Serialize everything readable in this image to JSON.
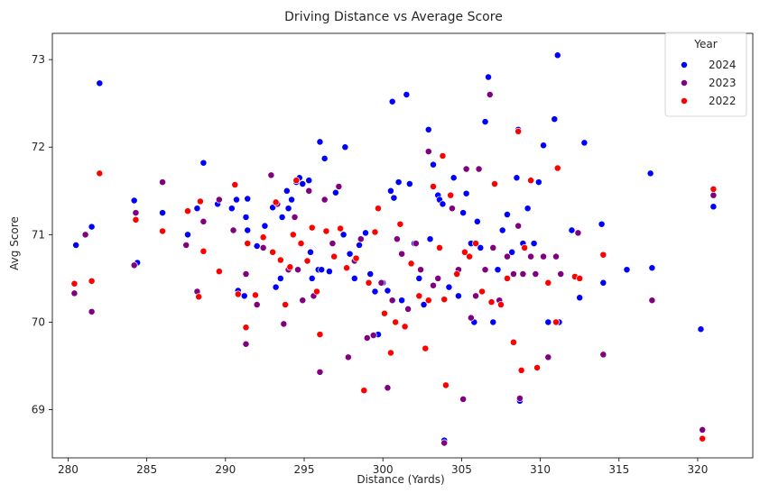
{
  "chart_data": {
    "type": "scatter",
    "title": "Driving Distance vs Average Score",
    "xlabel": "Distance (Yards)",
    "ylabel": "Avg Score",
    "xlim": [
      279,
      323.5
    ],
    "ylim": [
      68.45,
      73.3
    ],
    "xticks": [
      280,
      285,
      290,
      295,
      300,
      305,
      310,
      315,
      320
    ],
    "yticks": [
      69,
      70,
      71,
      72,
      73
    ],
    "grid": false,
    "legend": {
      "title": "Year",
      "placement": "top-right"
    },
    "series": [
      {
        "name": "2024",
        "color": "#0000ff",
        "points": [
          [
            280.5,
            70.88
          ],
          [
            281.1,
            71.0
          ],
          [
            281.5,
            71.09
          ],
          [
            282.0,
            72.73
          ],
          [
            284.2,
            71.39
          ],
          [
            284.4,
            70.68
          ],
          [
            286.0,
            71.25
          ],
          [
            287.6,
            71.0
          ],
          [
            288.2,
            71.3
          ],
          [
            288.6,
            71.82
          ],
          [
            289.5,
            71.35
          ],
          [
            290.4,
            71.3
          ],
          [
            290.7,
            71.4
          ],
          [
            290.8,
            70.36
          ],
          [
            291.2,
            70.3
          ],
          [
            291.3,
            71.2
          ],
          [
            291.4,
            71.05
          ],
          [
            291.4,
            71.41
          ],
          [
            292.0,
            70.87
          ],
          [
            292.5,
            71.1
          ],
          [
            293.0,
            71.31
          ],
          [
            293.2,
            70.4
          ],
          [
            293.5,
            70.5
          ],
          [
            293.6,
            71.2
          ],
          [
            293.9,
            71.5
          ],
          [
            294.0,
            71.3
          ],
          [
            294.2,
            71.4
          ],
          [
            294.5,
            71.6
          ],
          [
            294.7,
            71.65
          ],
          [
            294.9,
            71.58
          ],
          [
            295.3,
            71.62
          ],
          [
            295.4,
            70.8
          ],
          [
            295.5,
            70.5
          ],
          [
            295.9,
            70.6
          ],
          [
            296.0,
            72.06
          ],
          [
            296.1,
            70.6
          ],
          [
            296.3,
            71.87
          ],
          [
            296.6,
            70.58
          ],
          [
            297.0,
            71.48
          ],
          [
            297.5,
            71.0
          ],
          [
            297.6,
            72.0
          ],
          [
            297.9,
            70.78
          ],
          [
            298.2,
            70.5
          ],
          [
            298.5,
            70.88
          ],
          [
            298.9,
            71.02
          ],
          [
            299.2,
            70.55
          ],
          [
            299.5,
            70.35
          ],
          [
            299.7,
            69.86
          ],
          [
            300.0,
            70.45
          ],
          [
            300.3,
            70.36
          ],
          [
            300.5,
            71.5
          ],
          [
            300.6,
            72.52
          ],
          [
            300.7,
            71.42
          ],
          [
            301.0,
            71.6
          ],
          [
            301.2,
            70.25
          ],
          [
            301.5,
            72.6
          ],
          [
            301.7,
            71.58
          ],
          [
            302.0,
            70.9
          ],
          [
            302.3,
            70.5
          ],
          [
            302.6,
            70.2
          ],
          [
            302.9,
            72.2
          ],
          [
            303.0,
            70.95
          ],
          [
            303.2,
            71.8
          ],
          [
            303.5,
            71.45
          ],
          [
            303.6,
            71.4
          ],
          [
            303.8,
            71.35
          ],
          [
            303.9,
            68.65
          ],
          [
            304.2,
            70.4
          ],
          [
            304.5,
            71.65
          ],
          [
            304.8,
            70.3
          ],
          [
            305.1,
            71.25
          ],
          [
            305.3,
            71.47
          ],
          [
            305.6,
            70.9
          ],
          [
            305.8,
            70.0
          ],
          [
            306.0,
            71.15
          ],
          [
            306.2,
            70.85
          ],
          [
            306.5,
            72.29
          ],
          [
            306.7,
            72.8
          ],
          [
            307.0,
            70.0
          ],
          [
            307.3,
            70.6
          ],
          [
            307.6,
            71.05
          ],
          [
            307.9,
            71.23
          ],
          [
            308.2,
            70.8
          ],
          [
            308.5,
            71.65
          ],
          [
            308.6,
            72.2
          ],
          [
            308.7,
            69.1
          ],
          [
            308.9,
            70.9
          ],
          [
            309.2,
            71.3
          ],
          [
            309.6,
            70.9
          ],
          [
            309.9,
            71.6
          ],
          [
            310.2,
            72.02
          ],
          [
            310.5,
            70.0
          ],
          [
            310.9,
            72.32
          ],
          [
            311.1,
            73.05
          ],
          [
            311.2,
            70.0
          ],
          [
            312.0,
            71.05
          ],
          [
            312.5,
            70.28
          ],
          [
            312.8,
            72.05
          ],
          [
            313.9,
            71.12
          ],
          [
            314.0,
            70.45
          ],
          [
            315.5,
            70.6
          ],
          [
            317.0,
            71.7
          ],
          [
            317.1,
            70.62
          ],
          [
            320.2,
            69.92
          ],
          [
            321.0,
            71.32
          ]
        ]
      },
      {
        "name": "2023",
        "color": "#800080",
        "points": [
          [
            280.4,
            70.33
          ],
          [
            281.1,
            71.0
          ],
          [
            281.5,
            70.12
          ],
          [
            284.2,
            70.65
          ],
          [
            284.3,
            71.25
          ],
          [
            286.0,
            71.6
          ],
          [
            287.5,
            70.88
          ],
          [
            288.2,
            70.35
          ],
          [
            288.6,
            71.15
          ],
          [
            289.6,
            71.4
          ],
          [
            290.5,
            71.05
          ],
          [
            291.3,
            69.75
          ],
          [
            291.3,
            70.55
          ],
          [
            292.0,
            70.2
          ],
          [
            292.4,
            70.85
          ],
          [
            292.9,
            71.68
          ],
          [
            293.3,
            71.35
          ],
          [
            293.7,
            69.98
          ],
          [
            294.0,
            70.6
          ],
          [
            294.4,
            71.2
          ],
          [
            294.6,
            70.6
          ],
          [
            294.9,
            70.25
          ],
          [
            295.3,
            71.5
          ],
          [
            295.6,
            70.3
          ],
          [
            296.0,
            69.43
          ],
          [
            296.3,
            71.4
          ],
          [
            296.8,
            70.9
          ],
          [
            297.2,
            71.55
          ],
          [
            297.8,
            69.6
          ],
          [
            298.2,
            70.7
          ],
          [
            298.6,
            70.95
          ],
          [
            299.0,
            69.82
          ],
          [
            299.4,
            69.85
          ],
          [
            299.9,
            70.45
          ],
          [
            300.3,
            69.25
          ],
          [
            300.6,
            70.25
          ],
          [
            300.9,
            70.95
          ],
          [
            301.2,
            70.78
          ],
          [
            301.6,
            70.15
          ],
          [
            302.1,
            70.9
          ],
          [
            302.4,
            70.6
          ],
          [
            302.9,
            71.95
          ],
          [
            303.2,
            70.42
          ],
          [
            303.5,
            70.5
          ],
          [
            303.9,
            68.62
          ],
          [
            304.4,
            71.3
          ],
          [
            304.8,
            70.6
          ],
          [
            305.1,
            69.12
          ],
          [
            305.3,
            71.75
          ],
          [
            305.6,
            70.05
          ],
          [
            305.9,
            70.3
          ],
          [
            306.1,
            71.75
          ],
          [
            306.5,
            70.6
          ],
          [
            306.8,
            72.6
          ],
          [
            307.0,
            70.85
          ],
          [
            307.4,
            70.25
          ],
          [
            307.9,
            70.75
          ],
          [
            308.3,
            70.55
          ],
          [
            308.6,
            71.1
          ],
          [
            308.7,
            69.13
          ],
          [
            308.9,
            70.55
          ],
          [
            309.4,
            70.75
          ],
          [
            309.7,
            70.55
          ],
          [
            310.2,
            70.75
          ],
          [
            310.5,
            69.6
          ],
          [
            311.0,
            70.75
          ],
          [
            311.3,
            70.55
          ],
          [
            312.4,
            71.02
          ],
          [
            314.0,
            69.63
          ],
          [
            317.1,
            70.25
          ],
          [
            320.3,
            68.77
          ],
          [
            321.0,
            71.45
          ]
        ]
      },
      {
        "name": "2022",
        "color": "#ff0000",
        "points": [
          [
            280.4,
            70.44
          ],
          [
            281.5,
            70.47
          ],
          [
            282.0,
            71.7
          ],
          [
            284.3,
            71.17
          ],
          [
            286.0,
            71.04
          ],
          [
            287.6,
            71.27
          ],
          [
            288.3,
            70.29
          ],
          [
            288.4,
            71.38
          ],
          [
            288.6,
            70.81
          ],
          [
            289.6,
            70.58
          ],
          [
            290.6,
            71.57
          ],
          [
            290.8,
            70.32
          ],
          [
            291.3,
            69.94
          ],
          [
            291.4,
            70.9
          ],
          [
            291.9,
            70.31
          ],
          [
            292.4,
            70.97
          ],
          [
            293.0,
            70.8
          ],
          [
            293.2,
            71.37
          ],
          [
            293.5,
            70.71
          ],
          [
            293.8,
            70.2
          ],
          [
            294.1,
            70.63
          ],
          [
            294.3,
            71.0
          ],
          [
            294.5,
            71.62
          ],
          [
            294.8,
            70.9
          ],
          [
            295.2,
            70.7
          ],
          [
            295.5,
            71.08
          ],
          [
            295.8,
            70.35
          ],
          [
            296.0,
            69.86
          ],
          [
            296.4,
            71.04
          ],
          [
            296.9,
            70.75
          ],
          [
            297.3,
            71.07
          ],
          [
            297.7,
            70.62
          ],
          [
            298.3,
            70.73
          ],
          [
            298.8,
            69.22
          ],
          [
            299.1,
            70.45
          ],
          [
            299.5,
            71.03
          ],
          [
            299.7,
            71.3
          ],
          [
            300.1,
            70.1
          ],
          [
            300.5,
            69.65
          ],
          [
            300.8,
            70.0
          ],
          [
            301.1,
            71.12
          ],
          [
            301.4,
            69.95
          ],
          [
            301.8,
            70.67
          ],
          [
            302.3,
            70.3
          ],
          [
            302.7,
            69.7
          ],
          [
            302.9,
            70.25
          ],
          [
            303.2,
            71.55
          ],
          [
            303.6,
            70.85
          ],
          [
            303.8,
            71.9
          ],
          [
            303.9,
            70.26
          ],
          [
            304.0,
            69.28
          ],
          [
            304.3,
            71.45
          ],
          [
            304.7,
            70.55
          ],
          [
            305.2,
            70.8
          ],
          [
            305.5,
            70.75
          ],
          [
            305.9,
            70.9
          ],
          [
            306.3,
            70.35
          ],
          [
            306.9,
            70.23
          ],
          [
            307.1,
            71.58
          ],
          [
            307.5,
            70.2
          ],
          [
            307.9,
            70.5
          ],
          [
            308.3,
            69.77
          ],
          [
            308.6,
            72.18
          ],
          [
            308.8,
            69.45
          ],
          [
            309.0,
            70.85
          ],
          [
            309.4,
            71.62
          ],
          [
            309.8,
            69.48
          ],
          [
            310.5,
            70.45
          ],
          [
            311.0,
            70.0
          ],
          [
            311.1,
            71.76
          ],
          [
            312.2,
            70.52
          ],
          [
            312.5,
            70.5
          ],
          [
            314.0,
            70.77
          ],
          [
            320.3,
            68.67
          ],
          [
            321.0,
            71.52
          ]
        ]
      }
    ]
  }
}
